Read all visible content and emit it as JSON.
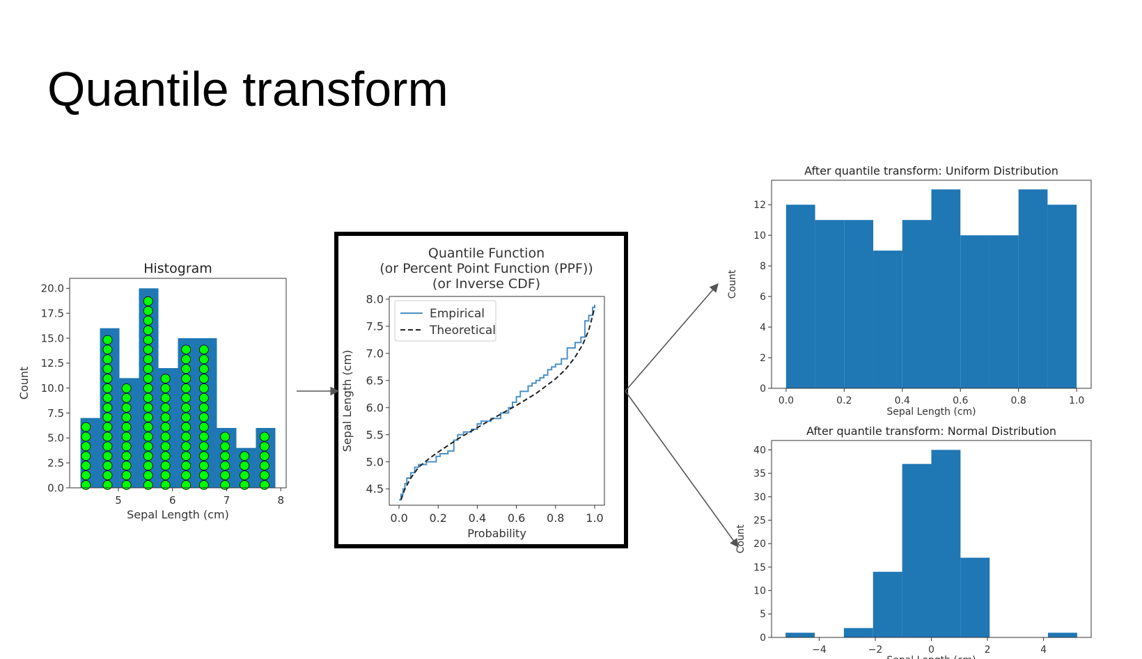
{
  "slide": {
    "title": "Quantile transform"
  },
  "colors": {
    "bar": "#1f77b4",
    "dot_fill": "#00ff00",
    "dot_stroke": "#000000",
    "frame": "#000000",
    "theoretical": "#222222",
    "arrow": "#555555"
  },
  "chart_data": [
    {
      "type": "bar",
      "title": "Histogram",
      "xlabel": "Sepal Length (cm)",
      "ylabel": "Count",
      "bin_edges": [
        4.3,
        4.66,
        5.02,
        5.38,
        5.74,
        6.1,
        6.46,
        6.82,
        7.18,
        7.54,
        7.9
      ],
      "values": [
        7,
        16,
        11,
        20,
        12,
        15,
        15,
        6,
        4,
        6
      ],
      "dot_x": [
        4.4,
        4.8,
        5.15,
        5.55,
        5.87,
        6.25,
        6.58,
        6.97,
        7.33,
        7.7
      ],
      "dot_counts": [
        7,
        16,
        11,
        20,
        12,
        15,
        15,
        6,
        4,
        6
      ],
      "xlim": [
        4.1,
        8.1
      ],
      "ylim": [
        0,
        21
      ],
      "xticks": [
        5,
        6,
        7,
        8
      ],
      "yticks": [
        0.0,
        2.5,
        5.0,
        7.5,
        10.0,
        12.5,
        15.0,
        17.5,
        20.0
      ],
      "ytick_labels": [
        "0.0",
        "2.5",
        "5.0",
        "7.5",
        "10.0",
        "12.5",
        "15.0",
        "17.5",
        "20.0"
      ],
      "grid": false,
      "legend": "none"
    },
    {
      "type": "line",
      "title_lines": [
        "Quantile Function",
        "(or Percent Point Function (PPF))",
        "(or Inverse CDF)"
      ],
      "xlabel": "Probability",
      "ylabel": "Sepal Length (cm)",
      "xlim": [
        -0.05,
        1.05
      ],
      "ylim": [
        4.2,
        8.05
      ],
      "xticks": [
        0.0,
        0.2,
        0.4,
        0.6,
        0.8,
        1.0
      ],
      "xtick_labels": [
        "0.0",
        "0.2",
        "0.4",
        "0.6",
        "0.8",
        "1.0"
      ],
      "yticks": [
        4.5,
        5.0,
        5.5,
        6.0,
        6.5,
        7.0,
        7.5,
        8.0
      ],
      "ytick_labels": [
        "4.5",
        "5.0",
        "5.5",
        "6.0",
        "6.5",
        "7.0",
        "7.5",
        "8.0"
      ],
      "legend": "upper left",
      "series": [
        {
          "name": "Empirical",
          "style": "solid",
          "color": "#4a90c8",
          "x": [
            0.0,
            0.01,
            0.02,
            0.03,
            0.04,
            0.06,
            0.08,
            0.1,
            0.14,
            0.19,
            0.21,
            0.25,
            0.28,
            0.3,
            0.33,
            0.37,
            0.4,
            0.42,
            0.47,
            0.52,
            0.56,
            0.58,
            0.6,
            0.62,
            0.66,
            0.68,
            0.7,
            0.72,
            0.74,
            0.76,
            0.78,
            0.8,
            0.83,
            0.86,
            0.9,
            0.93,
            0.95,
            0.97,
            0.99,
            1.0
          ],
          "y": [
            4.3,
            4.4,
            4.5,
            4.6,
            4.7,
            4.8,
            4.9,
            4.95,
            5.0,
            5.1,
            5.15,
            5.2,
            5.4,
            5.5,
            5.55,
            5.6,
            5.7,
            5.75,
            5.8,
            5.9,
            6.0,
            6.1,
            6.2,
            6.3,
            6.4,
            6.45,
            6.5,
            6.55,
            6.6,
            6.7,
            6.75,
            6.8,
            6.9,
            7.1,
            7.2,
            7.3,
            7.6,
            7.7,
            7.85,
            7.9
          ]
        },
        {
          "name": "Theoretical",
          "style": "dashed",
          "color": "#222222",
          "x": [
            0.01,
            0.03,
            0.06,
            0.1,
            0.15,
            0.2,
            0.3,
            0.4,
            0.5,
            0.6,
            0.7,
            0.8,
            0.85,
            0.9,
            0.94,
            0.97,
            0.99,
            1.0
          ],
          "y": [
            4.3,
            4.5,
            4.7,
            4.9,
            5.05,
            5.18,
            5.42,
            5.63,
            5.84,
            6.04,
            6.26,
            6.53,
            6.7,
            6.93,
            7.17,
            7.43,
            7.7,
            7.85
          ]
        }
      ]
    },
    {
      "type": "bar",
      "title": "After quantile transform: Uniform Distribution",
      "xlabel": "Sepal Length (cm)",
      "ylabel": "Count",
      "bin_edges": [
        0.0,
        0.1,
        0.2,
        0.3,
        0.4,
        0.5,
        0.6,
        0.7,
        0.8,
        0.9,
        1.0
      ],
      "values": [
        12,
        11,
        11,
        9,
        11,
        13,
        10,
        10,
        13,
        12
      ],
      "xlim": [
        -0.05,
        1.05
      ],
      "ylim": [
        0,
        13.6
      ],
      "xticks": [
        0.0,
        0.2,
        0.4,
        0.6,
        0.8,
        1.0
      ],
      "xtick_labels": [
        "0.0",
        "0.2",
        "0.4",
        "0.6",
        "0.8",
        "1.0"
      ],
      "yticks": [
        0,
        2,
        4,
        6,
        8,
        10,
        12
      ],
      "ytick_labels": [
        "0",
        "2",
        "4",
        "6",
        "8",
        "10",
        "12"
      ],
      "grid": false,
      "legend": "none"
    },
    {
      "type": "bar",
      "title": "After quantile transform: Normal Distribution",
      "xlabel": "Sepal Length (cm)",
      "ylabel": "Count",
      "bin_edges": [
        -5.2,
        -4.16,
        -3.12,
        -2.08,
        -1.04,
        0.0,
        1.04,
        2.08,
        3.12,
        4.16,
        5.2
      ],
      "values": [
        1,
        0,
        2,
        14,
        37,
        40,
        17,
        0,
        0,
        1
      ],
      "xlim": [
        -5.7,
        5.7
      ],
      "ylim": [
        0,
        42
      ],
      "xticks": [
        -4,
        -2,
        0,
        2,
        4
      ],
      "xtick_labels": [
        "−4",
        "−2",
        "0",
        "2",
        "4"
      ],
      "yticks": [
        0,
        5,
        10,
        15,
        20,
        25,
        30,
        35,
        40
      ],
      "ytick_labels": [
        "0",
        "5",
        "10",
        "15",
        "20",
        "25",
        "30",
        "35",
        "40"
      ],
      "grid": false,
      "legend": "none"
    }
  ]
}
